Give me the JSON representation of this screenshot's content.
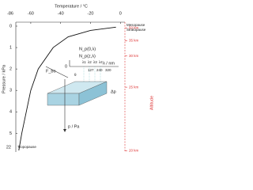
{
  "chart_data": {
    "type": "line",
    "x_label": "Temperature / °C",
    "y_label": "Pressure / kPa",
    "y2_label": "Altitude",
    "xlim": [
      -70,
      3
    ],
    "xticks": [
      -60,
      -40,
      -20,
      0
    ],
    "x_min_label": "-86",
    "ylim": [
      0,
      5.8
    ],
    "yticks": [
      0,
      1,
      2,
      3,
      4,
      5
    ],
    "y_bottom_label": "22",
    "y2ticks": [
      {
        "value": 50,
        "label": "50 km"
      },
      {
        "value": 35,
        "label": "35 km"
      },
      {
        "value": 30,
        "label": "30 km"
      },
      {
        "value": 25,
        "label": "25 km"
      },
      {
        "value": 20,
        "label": "20 km"
      }
    ],
    "x": [
      -3,
      -20,
      -35,
      -45,
      -55,
      -60,
      -63,
      -66,
      -68
    ],
    "series": [
      {
        "color": "#111",
        "values": [
          0.05,
          0.2,
          0.5,
          1,
          2,
          3,
          4,
          5,
          5.8
        ]
      }
    ],
    "annotations": {
      "mesopause": "Mesopause",
      "stratopause": "Stratopause",
      "tropopause": "Tropopause"
    }
  },
  "inset": {
    "n0": "N_p(0,λ)",
    "nz": "N_p(z,λ)",
    "lambda_axis": "λ / nm",
    "origin": "0",
    "lambdas": [
      "λ1",
      "λ2",
      "λ3",
      "λ4"
    ],
    "wavelengths": [
      "127",
      "240",
      "320"
    ],
    "flux": "F_bo",
    "theta": "θ",
    "delta_p": "Δp",
    "p_axis": "p / Pa"
  }
}
